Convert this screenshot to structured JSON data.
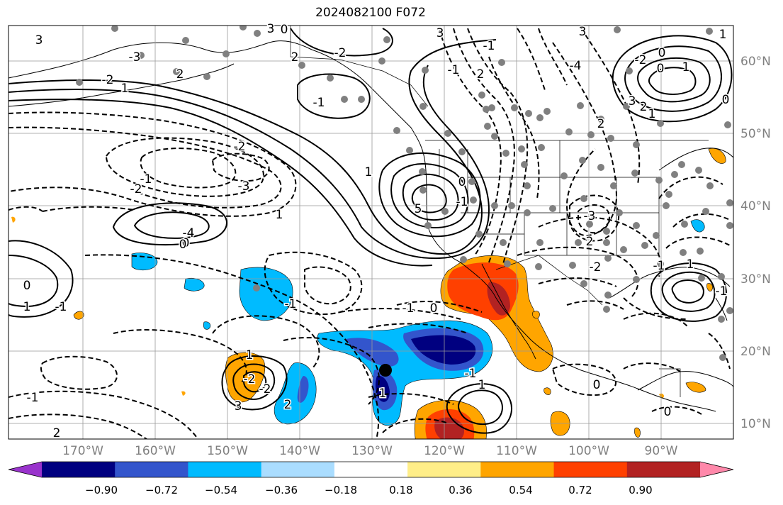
{
  "title": "2024082100 F072",
  "lat_labels": [
    "60°N",
    "50°N",
    "40°N",
    "30°N",
    "20°N",
    "10°N"
  ],
  "lon_labels": [
    "170°W",
    "160°W",
    "150°W",
    "140°W",
    "130°W",
    "120°W",
    "110°W",
    "100°W",
    "90°W"
  ],
  "colorbar": {
    "ticks": [
      "−0.90",
      "−0.72",
      "−0.54",
      "−0.36",
      "−0.18",
      "0.18",
      "0.36",
      "0.54",
      "0.72",
      "0.90"
    ],
    "colors": [
      "#9933cc",
      "#000080",
      "#3355cc",
      "#00bbff",
      "#aaddff",
      "#ffffff",
      "#ffee88",
      "#ffa500",
      "#ff4000",
      "#b22222",
      "#ff88aa"
    ]
  },
  "contour_labels": [
    "3",
    "-3",
    "1",
    "0",
    "-2",
    "2",
    "-1",
    "3",
    "-2",
    "2",
    "3",
    "-1",
    "-1",
    "2",
    "3",
    "-4",
    "-2",
    "-3",
    "-1",
    "-2",
    "1",
    "0",
    "-4",
    "5",
    "0",
    "1",
    "-1",
    "0",
    "1",
    "-1",
    "-1",
    "2",
    "1",
    "-2",
    "-2",
    "3",
    "-1",
    "2",
    "-1",
    "0",
    "1",
    "-1",
    "1",
    "0",
    "-3",
    "2",
    "-2",
    "-1",
    "1",
    "0",
    "-1",
    "-2",
    "0",
    "1",
    "0",
    "1",
    "2",
    "3",
    "2",
    "1",
    "0",
    "0"
  ]
}
